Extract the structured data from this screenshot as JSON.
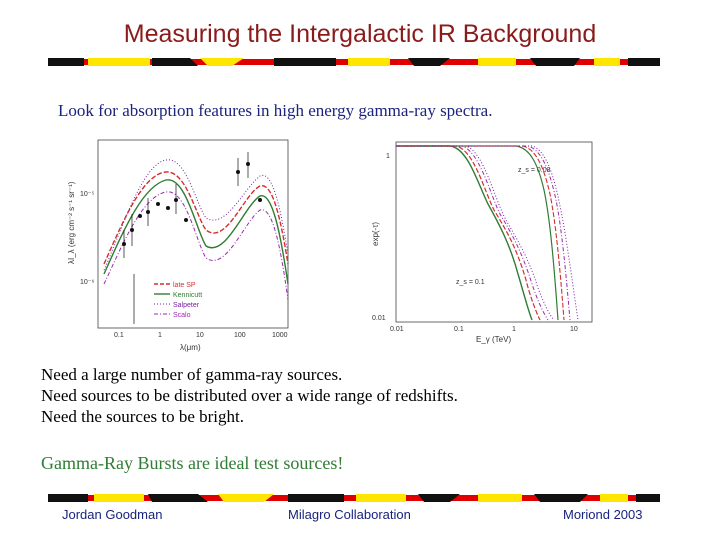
{
  "slide": {
    "title": "Measuring the Intergalactic IR Background",
    "subtitle": "Look for absorption features in high energy gamma-ray spectra.",
    "bullets": [
      "Need a large number of gamma-ray sources.",
      "Need sources to be distributed over a wide range of redshifts.",
      "Need the sources to be bright."
    ],
    "highlight": "Gamma-Ray Bursts are ideal test sources!",
    "footer": {
      "left": "Jordan Goodman",
      "center": "Milagro Collaboration",
      "right": "Moriond 2003"
    },
    "colors": {
      "title": "#8b1a1a",
      "text_blue": "#1a237e",
      "highlight_green": "#2e7d32",
      "band_red": "#e00000",
      "band_yellow": "#ffe600",
      "band_black": "#111111"
    }
  },
  "chart_data": [
    {
      "type": "line",
      "xlabel": "λ(μm)",
      "ylabel": "λI_λ (erg cm⁻² s⁻¹ sr⁻¹)",
      "xscale": "log",
      "yscale": "log",
      "x_ticks": [
        "0.1",
        "1",
        "10",
        "100",
        "1000"
      ],
      "y_ticks": [
        "10⁻⁵",
        "10⁻⁶"
      ],
      "legend_position": "bottom-left",
      "series": [
        {
          "name": "late SP",
          "color": "#d32f2f",
          "style": "dashed"
        },
        {
          "name": "Kennicutt",
          "color": "#2e7d32",
          "style": "solid"
        },
        {
          "name": "Salpeter",
          "color": "#7b1fa2",
          "style": "dotted"
        },
        {
          "name": "Scalo",
          "color": "#9c27b0",
          "style": "dash-dot"
        }
      ]
    },
    {
      "type": "line",
      "xlabel": "E_γ (TeV)",
      "ylabel": "exp(-τ)",
      "xscale": "log",
      "x_ticks": [
        "0.01",
        "0.1",
        "1",
        "10"
      ],
      "y_ticks": [
        "1",
        "0.01"
      ],
      "annotations": [
        "z_s = 0.03",
        "z_s = 0.1"
      ]
    }
  ]
}
